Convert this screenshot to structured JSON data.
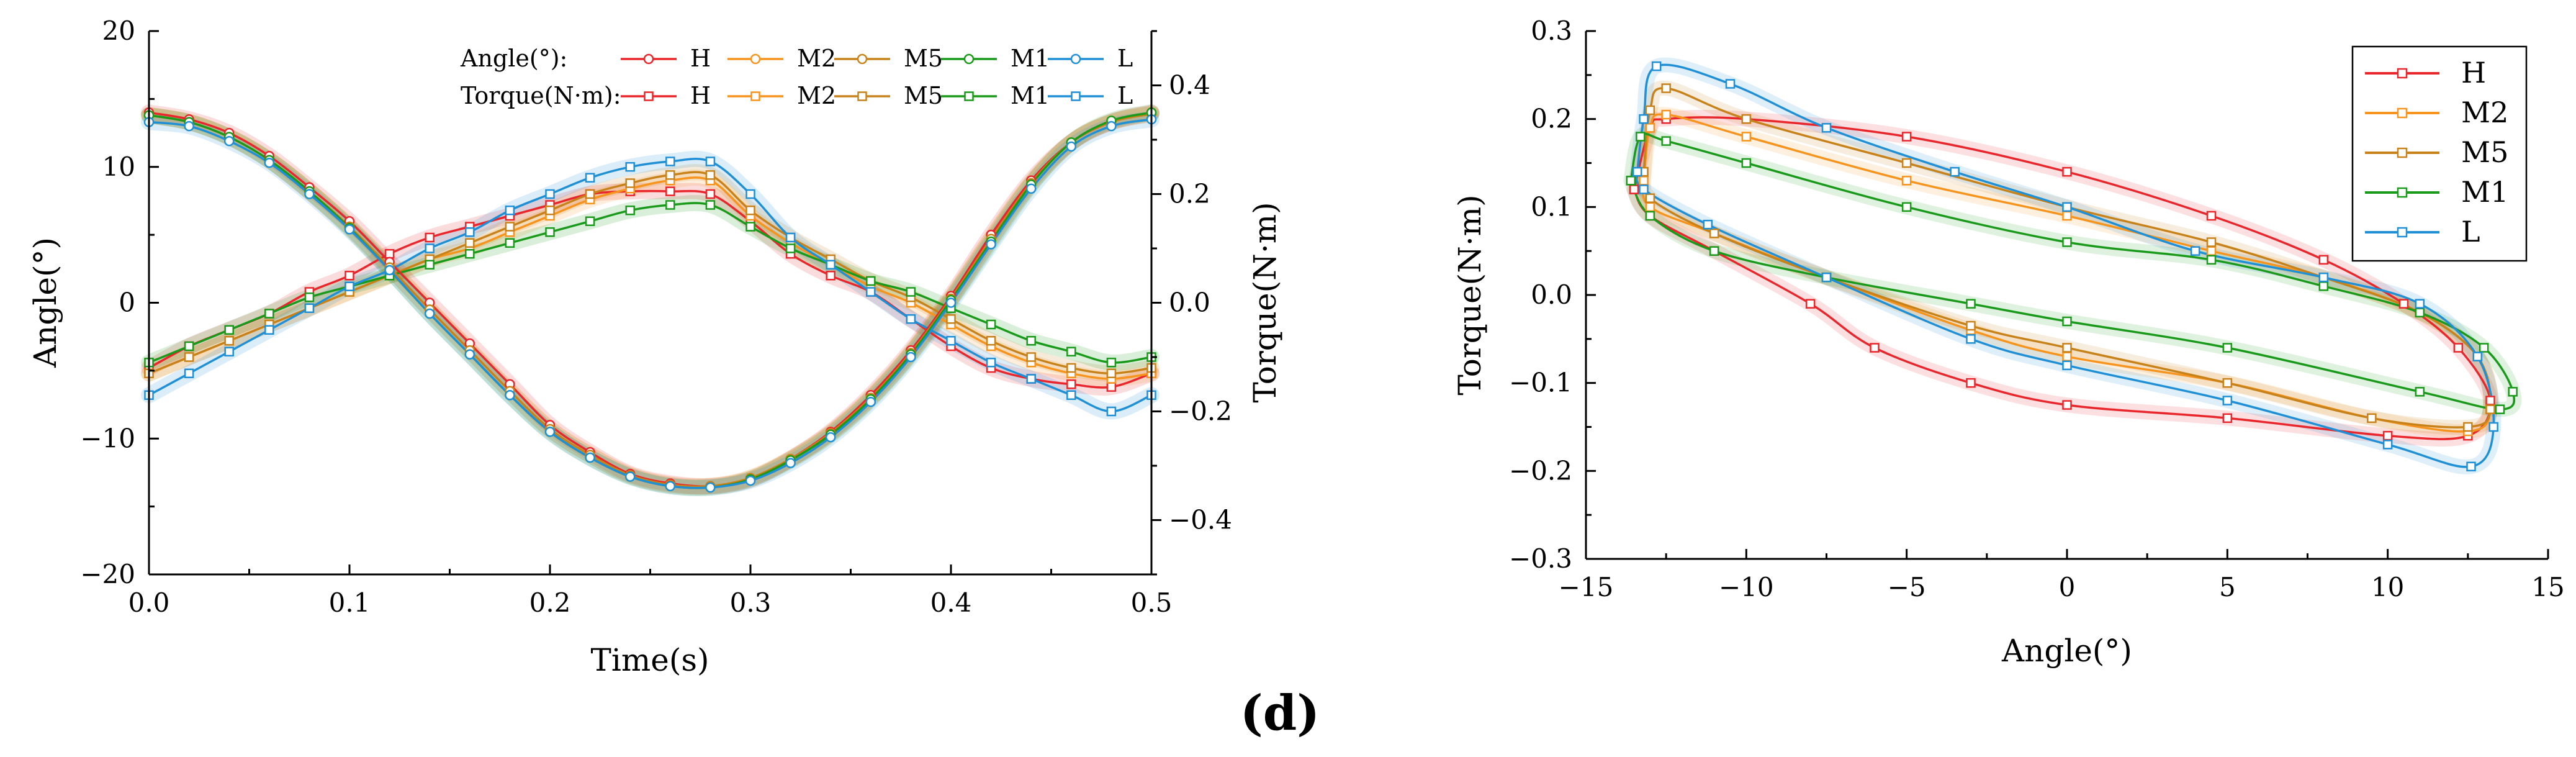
{
  "colors": {
    "H": "#e8262b",
    "M2": "#f7941d",
    "M5": "#c8821a",
    "M1": "#1a9a1a",
    "L": "#1f8fd6"
  },
  "figure_caption": "(d)",
  "chart_data": [
    {
      "type": "line",
      "title": "",
      "xlabel": "Time(s)",
      "ylabel": "Angle(°)",
      "y2label": "Torque(N·m)",
      "xlim": [
        0,
        0.5
      ],
      "ylim": [
        -20,
        20
      ],
      "y2lim": [
        -0.5,
        0.5
      ],
      "x_ticks": [
        "0.0",
        "0.1",
        "0.2",
        "0.3",
        "0.4",
        "0.5"
      ],
      "y_ticks": [
        "−20",
        "−10",
        "0",
        "10",
        "20"
      ],
      "y2_ticks": [
        "−0.4",
        "−0.2",
        "0.0",
        "0.2",
        "0.4"
      ],
      "legend_title_angle": "Angle(°):",
      "legend_title_torque": "Torque(N·m):",
      "legend_names": [
        "H",
        "M2",
        "M5",
        "M1",
        "L"
      ],
      "x": [
        0,
        0.02,
        0.04,
        0.06,
        0.08,
        0.1,
        0.12,
        0.14,
        0.16,
        0.18,
        0.2,
        0.22,
        0.24,
        0.26,
        0.28,
        0.3,
        0.32,
        0.34,
        0.36,
        0.38,
        0.4,
        0.42,
        0.44,
        0.46,
        0.48,
        0.5
      ],
      "series": [
        {
          "name": "H",
          "kind": "angle",
          "axis": "left",
          "values": [
            14,
            13.5,
            12.5,
            10.8,
            8.5,
            6,
            3,
            0,
            -3,
            -6,
            -9,
            -11,
            -12.6,
            -13.3,
            -13.5,
            -13,
            -11.5,
            -9.5,
            -6.8,
            -3.5,
            0.5,
            5,
            9,
            11.8,
            13.3,
            14
          ]
        },
        {
          "name": "M2",
          "kind": "angle",
          "axis": "left",
          "values": [
            13.8,
            13.3,
            12.2,
            10.5,
            8.2,
            5.6,
            2.6,
            -0.5,
            -3.5,
            -6.5,
            -9.3,
            -11.2,
            -12.7,
            -13.4,
            -13.5,
            -12.9,
            -11.5,
            -9.6,
            -7,
            -3.7,
            0.3,
            4.7,
            8.8,
            11.8,
            13.3,
            13.9
          ]
        },
        {
          "name": "M5",
          "kind": "angle",
          "axis": "left",
          "values": [
            13.8,
            13.3,
            12.2,
            10.5,
            8.2,
            5.6,
            2.6,
            -0.5,
            -3.5,
            -6.5,
            -9.3,
            -11.2,
            -12.7,
            -13.4,
            -13.5,
            -12.9,
            -11.5,
            -9.6,
            -7,
            -3.7,
            0.3,
            4.7,
            8.8,
            11.8,
            13.3,
            13.9
          ]
        },
        {
          "name": "M1",
          "kind": "angle",
          "axis": "left",
          "values": [
            13.8,
            13.3,
            12.2,
            10.5,
            8.2,
            5.5,
            2.4,
            -0.8,
            -3.8,
            -6.8,
            -9.5,
            -11.4,
            -12.8,
            -13.5,
            -13.6,
            -13,
            -11.6,
            -9.7,
            -7.1,
            -3.8,
            0.2,
            4.5,
            8.7,
            11.8,
            13.4,
            14
          ]
        },
        {
          "name": "L",
          "kind": "angle",
          "axis": "left",
          "values": [
            13.3,
            13,
            11.9,
            10.3,
            8,
            5.4,
            2.4,
            -0.8,
            -3.8,
            -6.8,
            -9.5,
            -11.4,
            -12.8,
            -13.5,
            -13.6,
            -13.1,
            -11.8,
            -9.9,
            -7.3,
            -4,
            0,
            4.3,
            8.4,
            11.5,
            13,
            13.5
          ]
        },
        {
          "name": "H",
          "kind": "torque",
          "axis": "right",
          "values": [
            -0.12,
            -0.08,
            -0.05,
            -0.02,
            0.02,
            0.05,
            0.09,
            0.12,
            0.14,
            0.16,
            0.18,
            0.2,
            0.205,
            0.205,
            0.2,
            0.15,
            0.09,
            0.05,
            0.02,
            -0.03,
            -0.08,
            -0.12,
            -0.14,
            -0.15,
            -0.155,
            -0.13
          ]
        },
        {
          "name": "M2",
          "kind": "torque",
          "axis": "right",
          "values": [
            -0.13,
            -0.1,
            -0.07,
            -0.04,
            -0.01,
            0.02,
            0.05,
            0.08,
            0.1,
            0.13,
            0.16,
            0.19,
            0.21,
            0.225,
            0.225,
            0.16,
            0.11,
            0.07,
            0.03,
            0,
            -0.04,
            -0.08,
            -0.11,
            -0.13,
            -0.14,
            -0.13
          ]
        },
        {
          "name": "M5",
          "kind": "torque",
          "axis": "right",
          "values": [
            -0.13,
            -0.1,
            -0.07,
            -0.04,
            -0.01,
            0.02,
            0.05,
            0.08,
            0.11,
            0.14,
            0.17,
            0.2,
            0.22,
            0.235,
            0.235,
            0.17,
            0.12,
            0.08,
            0.04,
            0.01,
            -0.03,
            -0.07,
            -0.1,
            -0.12,
            -0.13,
            -0.12
          ]
        },
        {
          "name": "M1",
          "kind": "torque",
          "axis": "right",
          "values": [
            -0.11,
            -0.08,
            -0.05,
            -0.02,
            0.01,
            0.03,
            0.05,
            0.07,
            0.09,
            0.11,
            0.13,
            0.15,
            0.17,
            0.18,
            0.18,
            0.14,
            0.1,
            0.07,
            0.04,
            0.02,
            -0.01,
            -0.04,
            -0.07,
            -0.09,
            -0.11,
            -0.1
          ]
        },
        {
          "name": "L",
          "kind": "torque",
          "axis": "right",
          "values": [
            -0.17,
            -0.13,
            -0.09,
            -0.05,
            -0.01,
            0.03,
            0.06,
            0.1,
            0.13,
            0.17,
            0.2,
            0.23,
            0.25,
            0.26,
            0.26,
            0.2,
            0.12,
            0.07,
            0.02,
            -0.03,
            -0.07,
            -0.11,
            -0.14,
            -0.17,
            -0.2,
            -0.17
          ]
        }
      ]
    },
    {
      "type": "line",
      "title": "",
      "xlabel": "Angle(°)",
      "ylabel": "Torque(N·m)",
      "xlim": [
        -15,
        15
      ],
      "ylim": [
        -0.3,
        0.3
      ],
      "x_ticks": [
        "−15",
        "−10",
        "−5",
        "0",
        "5",
        "10",
        "15"
      ],
      "y_ticks": [
        "−0.3",
        "−0.2",
        "−0.1",
        "0.0",
        "0.1",
        "0.2",
        "0.3"
      ],
      "legend_names": [
        "H",
        "M2",
        "M5",
        "M1",
        "L"
      ],
      "series": [
        {
          "name": "H",
          "points": [
            [
              -13.5,
              0.12
            ],
            [
              -13,
              0.19
            ],
            [
              -12.5,
              0.2
            ],
            [
              -10,
              0.2
            ],
            [
              -5,
              0.18
            ],
            [
              0,
              0.14
            ],
            [
              4.5,
              0.09
            ],
            [
              8,
              0.04
            ],
            [
              10.5,
              -0.01
            ],
            [
              12.2,
              -0.06
            ],
            [
              13.2,
              -0.12
            ],
            [
              12.5,
              -0.16
            ],
            [
              10,
              -0.16
            ],
            [
              5,
              -0.14
            ],
            [
              0,
              -0.125
            ],
            [
              -3,
              -0.1
            ],
            [
              -6,
              -0.06
            ],
            [
              -8,
              -0.01
            ],
            [
              -11,
              0.05
            ],
            [
              -13,
              0.09
            ],
            [
              -13.5,
              0.12
            ]
          ]
        },
        {
          "name": "M2",
          "points": [
            [
              -13.2,
              0.13
            ],
            [
              -13,
              0.19
            ],
            [
              -12.5,
              0.205
            ],
            [
              -10,
              0.18
            ],
            [
              -5,
              0.13
            ],
            [
              0,
              0.09
            ],
            [
              4.5,
              0.05
            ],
            [
              8,
              0.02
            ],
            [
              11,
              -0.02
            ],
            [
              12.8,
              -0.07
            ],
            [
              13.2,
              -0.13
            ],
            [
              12.5,
              -0.155
            ],
            [
              9.5,
              -0.14
            ],
            [
              5,
              -0.1
            ],
            [
              0,
              -0.07
            ],
            [
              -3,
              -0.04
            ],
            [
              -7.5,
              0.02
            ],
            [
              -11,
              0.07
            ],
            [
              -13,
              0.1
            ],
            [
              -13.2,
              0.13
            ]
          ]
        },
        {
          "name": "M5",
          "points": [
            [
              -13.2,
              0.14
            ],
            [
              -13,
              0.21
            ],
            [
              -12.5,
              0.235
            ],
            [
              -10,
              0.2
            ],
            [
              -5,
              0.15
            ],
            [
              0,
              0.1
            ],
            [
              4.5,
              0.06
            ],
            [
              8,
              0.02
            ],
            [
              11,
              -0.02
            ],
            [
              12.8,
              -0.07
            ],
            [
              13.2,
              -0.13
            ],
            [
              12.5,
              -0.15
            ],
            [
              9.5,
              -0.14
            ],
            [
              5,
              -0.1
            ],
            [
              0,
              -0.06
            ],
            [
              -3,
              -0.035
            ],
            [
              -7.5,
              0.02
            ],
            [
              -11,
              0.07
            ],
            [
              -13,
              0.11
            ],
            [
              -13.2,
              0.14
            ]
          ]
        },
        {
          "name": "M1",
          "points": [
            [
              -13.6,
              0.13
            ],
            [
              -13.3,
              0.18
            ],
            [
              -12.5,
              0.175
            ],
            [
              -10,
              0.15
            ],
            [
              -5,
              0.1
            ],
            [
              0,
              0.06
            ],
            [
              4.5,
              0.04
            ],
            [
              8,
              0.01
            ],
            [
              11,
              -0.02
            ],
            [
              13,
              -0.06
            ],
            [
              13.9,
              -0.11
            ],
            [
              13.5,
              -0.13
            ],
            [
              11,
              -0.11
            ],
            [
              5,
              -0.06
            ],
            [
              0,
              -0.03
            ],
            [
              -3,
              -0.01
            ],
            [
              -7.5,
              0.02
            ],
            [
              -11,
              0.05
            ],
            [
              -13,
              0.09
            ],
            [
              -13.6,
              0.13
            ]
          ]
        },
        {
          "name": "L",
          "points": [
            [
              -13.4,
              0.14
            ],
            [
              -13.2,
              0.2
            ],
            [
              -12.8,
              0.26
            ],
            [
              -10.5,
              0.24
            ],
            [
              -7.5,
              0.19
            ],
            [
              -3.5,
              0.14
            ],
            [
              0,
              0.1
            ],
            [
              4,
              0.05
            ],
            [
              8,
              0.02
            ],
            [
              11,
              -0.01
            ],
            [
              12.8,
              -0.07
            ],
            [
              13.3,
              -0.15
            ],
            [
              12.6,
              -0.195
            ],
            [
              10,
              -0.17
            ],
            [
              5,
              -0.12
            ],
            [
              0,
              -0.08
            ],
            [
              -3,
              -0.05
            ],
            [
              -7.5,
              0.02
            ],
            [
              -11.2,
              0.08
            ],
            [
              -13.2,
              0.12
            ],
            [
              -13.4,
              0.14
            ]
          ]
        }
      ]
    }
  ]
}
